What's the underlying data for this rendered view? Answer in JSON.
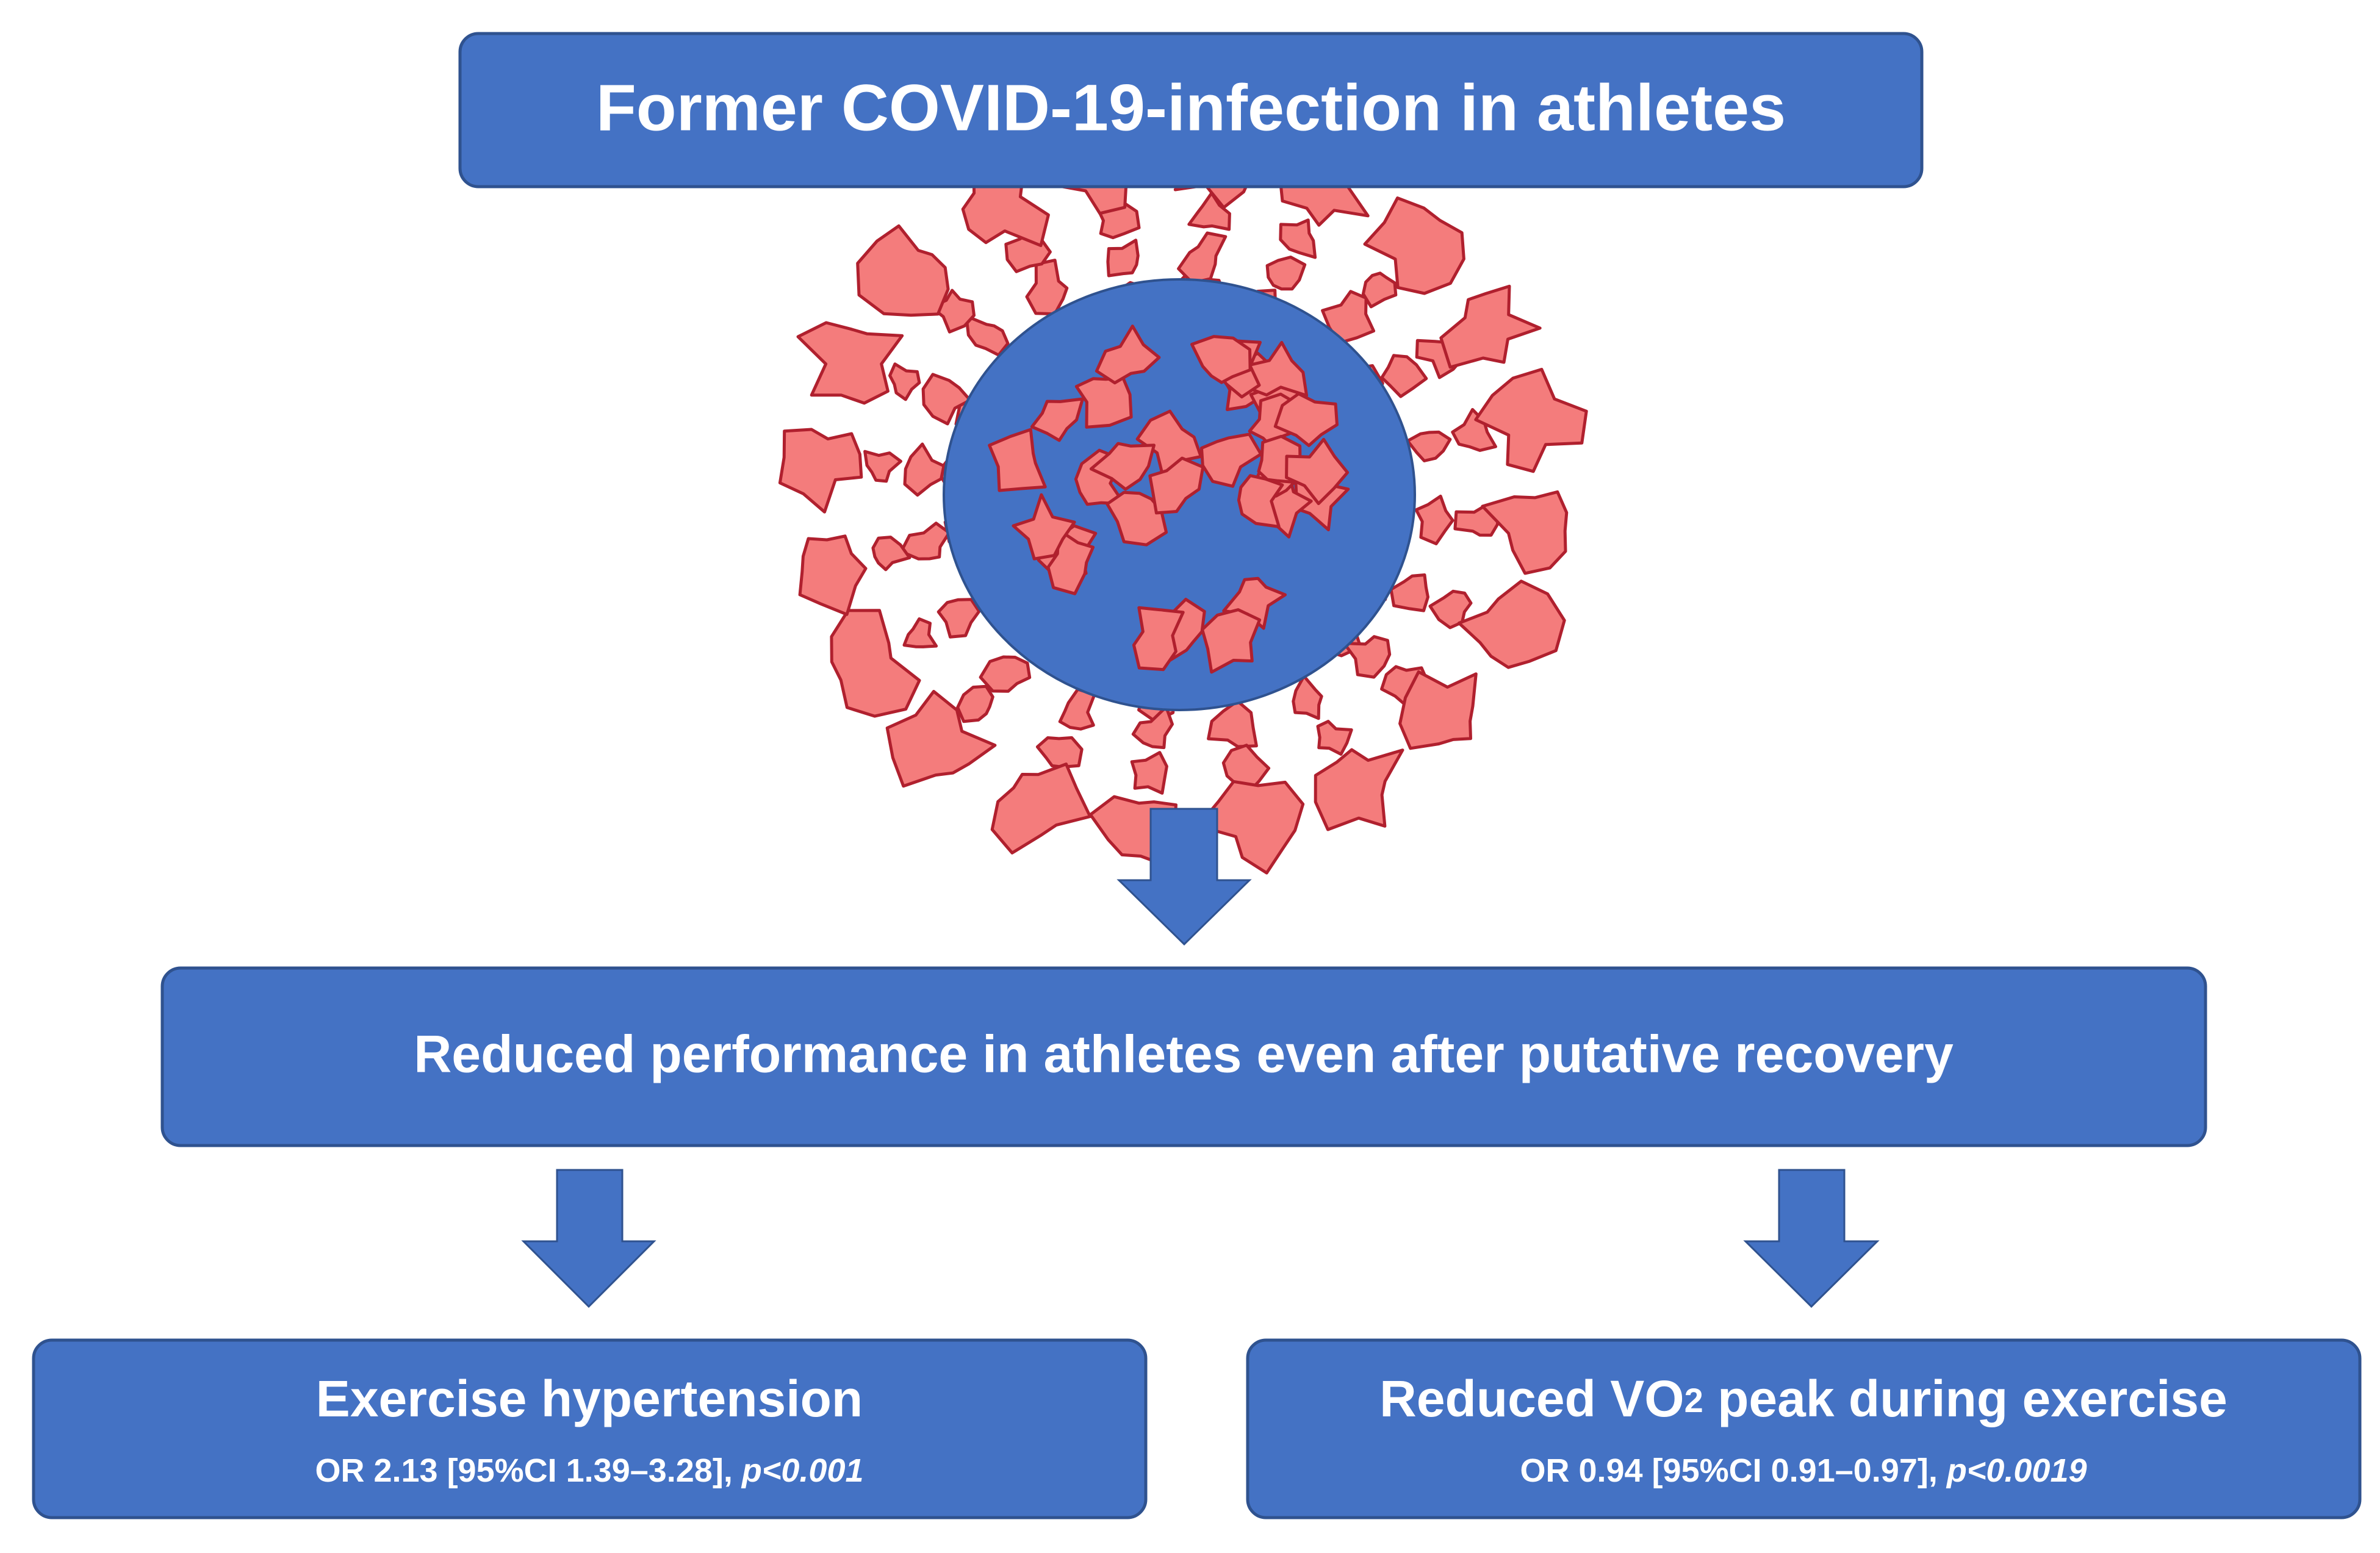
{
  "header": {
    "title": "Former COVID-19-infection in athletes"
  },
  "finding": {
    "text": "Reduced performance in athletes even after putative recovery"
  },
  "outcomes": [
    {
      "title_parts": [
        "Exercise hypertension"
      ],
      "stat": "OR 2.13 [95%CI 1.39–3.28], ",
      "p": "p<0.001"
    },
    {
      "title_parts": [
        "Reduced VO",
        "2",
        " peak during exercise"
      ],
      "stat": "OR 0.94 [95%CI 0.91–0.97], ",
      "p": "p<0.0019"
    }
  ]
}
